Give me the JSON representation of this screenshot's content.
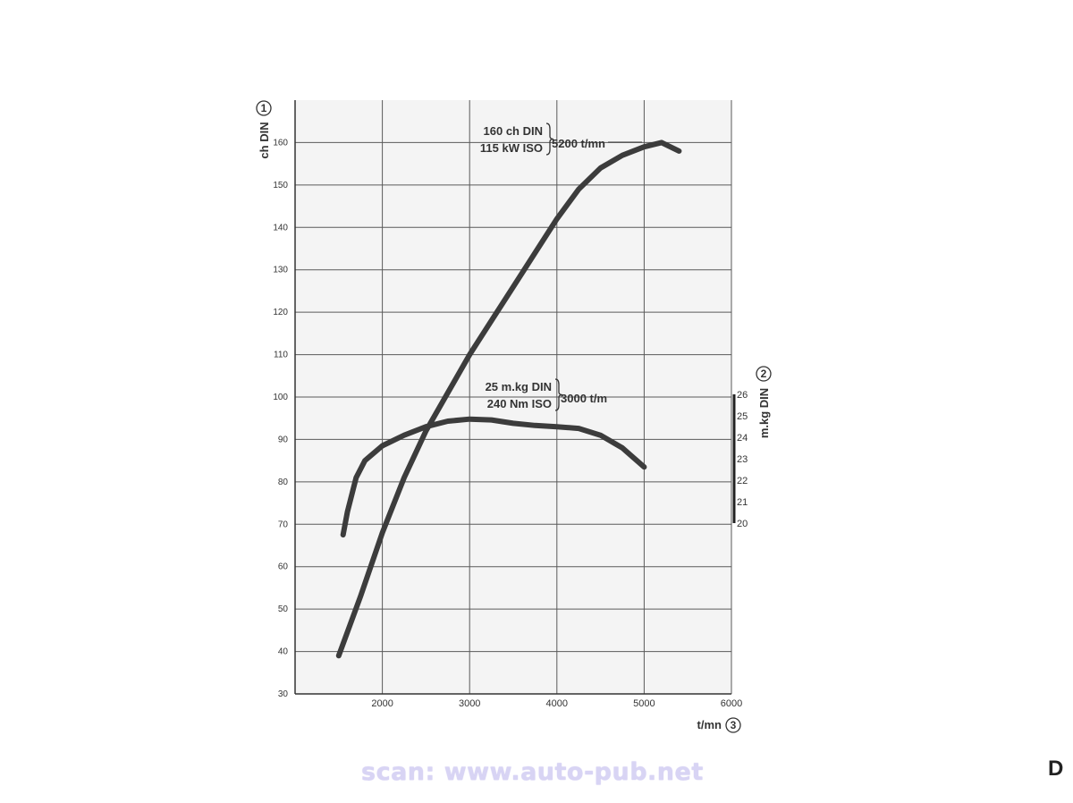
{
  "chart_data": {
    "type": "line",
    "x_axis": {
      "label": "t/mn",
      "badge": "3",
      "range": [
        1000,
        6000
      ],
      "ticks": [
        2000,
        3000,
        4000,
        5000,
        6000
      ]
    },
    "y_left": {
      "label": "ch DIN",
      "badge": "1",
      "range": [
        30,
        170
      ],
      "ticks": [
        30,
        40,
        50,
        60,
        70,
        80,
        90,
        100,
        110,
        120,
        130,
        140,
        150,
        160
      ]
    },
    "y_right": {
      "label": "m.kg DIN",
      "badge": "2",
      "range": [
        20,
        26
      ],
      "ticks": [
        20,
        21,
        22,
        23,
        24,
        25,
        26
      ]
    },
    "grid": true,
    "series": [
      {
        "name": "",
        "axis": "left",
        "color": "#3c3c3c",
        "points": [
          [
            1500,
            39
          ],
          [
            1750,
            53
          ],
          [
            2000,
            68
          ],
          [
            2250,
            81
          ],
          [
            2500,
            92
          ],
          [
            2750,
            101
          ],
          [
            3000,
            110
          ],
          [
            3250,
            118
          ],
          [
            3500,
            126
          ],
          [
            3750,
            134
          ],
          [
            4000,
            142
          ],
          [
            4250,
            149
          ],
          [
            4500,
            154
          ],
          [
            4750,
            157
          ],
          [
            5000,
            159
          ],
          [
            5200,
            160
          ],
          [
            5400,
            158
          ]
        ]
      },
      {
        "name": "",
        "axis": "left",
        "color": "#3c3c3c",
        "points": [
          [
            1550,
            67.5
          ],
          [
            1600,
            73
          ],
          [
            1700,
            81
          ],
          [
            1800,
            85
          ],
          [
            2000,
            88.5
          ],
          [
            2250,
            91
          ],
          [
            2500,
            93
          ],
          [
            2750,
            94.3
          ],
          [
            3000,
            94.8
          ],
          [
            3250,
            94.6
          ],
          [
            3500,
            93.8
          ],
          [
            3750,
            93.3
          ],
          [
            4000,
            93
          ],
          [
            4250,
            92.6
          ],
          [
            4500,
            91
          ],
          [
            4750,
            88
          ],
          [
            5000,
            83.5
          ]
        ]
      }
    ],
    "annotations": [
      {
        "lines": [
          "160 ch DIN",
          "115 kW ISO"
        ],
        "value": "5200 t/mn"
      },
      {
        "lines": [
          "25 m.kg DIN",
          "240 Nm ISO"
        ],
        "value": "3000 t/m"
      }
    ]
  },
  "footer": {
    "watermark": "scan: www.auto-pub.net",
    "page_letter": "D"
  }
}
